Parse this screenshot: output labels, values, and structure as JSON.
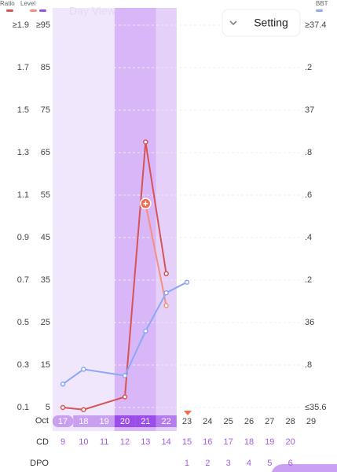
{
  "chart_data": {
    "type": "line",
    "day_view": "Day View",
    "setting": "Setting",
    "axis_titles": {
      "ratio": "Ratio",
      "level": "Level",
      "bbt": "BBT"
    },
    "row_labels": {
      "month": "Oct",
      "cd": "CD",
      "dpo": "DPO"
    },
    "x": [
      17,
      18,
      19,
      20,
      21,
      22,
      23,
      24,
      25,
      26,
      27,
      28,
      29
    ],
    "chip_colors": [
      "#c99ff0",
      "#c99ff0",
      "#c99ff0",
      "#9a4de9",
      "#9a4de9",
      "#b57cee",
      null,
      null,
      null,
      null,
      null,
      null,
      null
    ],
    "cd": [
      9,
      10,
      11,
      12,
      13,
      14,
      15,
      16,
      17,
      18,
      19,
      20,
      null
    ],
    "dpo": [
      null,
      null,
      null,
      null,
      null,
      null,
      1,
      2,
      3,
      4,
      5,
      6,
      null
    ],
    "bands": [
      {
        "x": [
          17,
          22
        ],
        "color": "#f1e7fc"
      },
      {
        "x": [
          20,
          21
        ],
        "color": "#d8b6f7"
      },
      {
        "x": [
          22,
          22
        ],
        "color": "#e4d0f9"
      }
    ],
    "ylim": [
      0.1,
      1.9
    ],
    "yticks": [
      {
        "value": 1.9,
        "label": "≥1.9"
      },
      1.7,
      1.5,
      1.3,
      1.1,
      0.9,
      0.7,
      0.5,
      0.3,
      0.1
    ],
    "level_lim": [
      5,
      95
    ],
    "level_ticks": [
      {
        "value": 95,
        "label": "≥95"
      },
      85,
      75,
      65,
      55,
      45,
      35,
      25,
      15,
      5
    ],
    "y2lim": [
      35.6,
      37.4
    ],
    "y2ticks": [
      {
        "value": 37.4,
        "label": "≥37.4"
      },
      {
        "value": 37.2,
        "label": ".2"
      },
      37,
      {
        "value": 36.8,
        "label": ".8"
      },
      {
        "value": 36.6,
        "label": ".6"
      },
      {
        "value": 36.4,
        "label": ".4"
      },
      {
        "value": 36.2,
        "label": ".2"
      },
      36,
      {
        "value": 35.8,
        "label": ".8"
      },
      {
        "value": 35.6,
        "label": "≤35.6"
      }
    ],
    "grid": true,
    "series": [
      {
        "name": "Ratio",
        "color": "#d65454",
        "axis": "y",
        "x": [
          17,
          18,
          20,
          21,
          22
        ],
        "values": [
          0.1,
          0.09,
          0.15,
          1.35,
          0.73
        ]
      },
      {
        "name": "Level",
        "color": "#f5907a",
        "axis": "level",
        "x": [
          21,
          22
        ],
        "values": [
          53,
          29
        ]
      },
      {
        "name": "BBT",
        "color": "#8aa8f6",
        "axis": "y2",
        "x": [
          17,
          18,
          20,
          21,
          22,
          23
        ],
        "values": [
          35.71,
          35.78,
          35.75,
          35.96,
          36.14,
          36.19
        ]
      }
    ]
  }
}
